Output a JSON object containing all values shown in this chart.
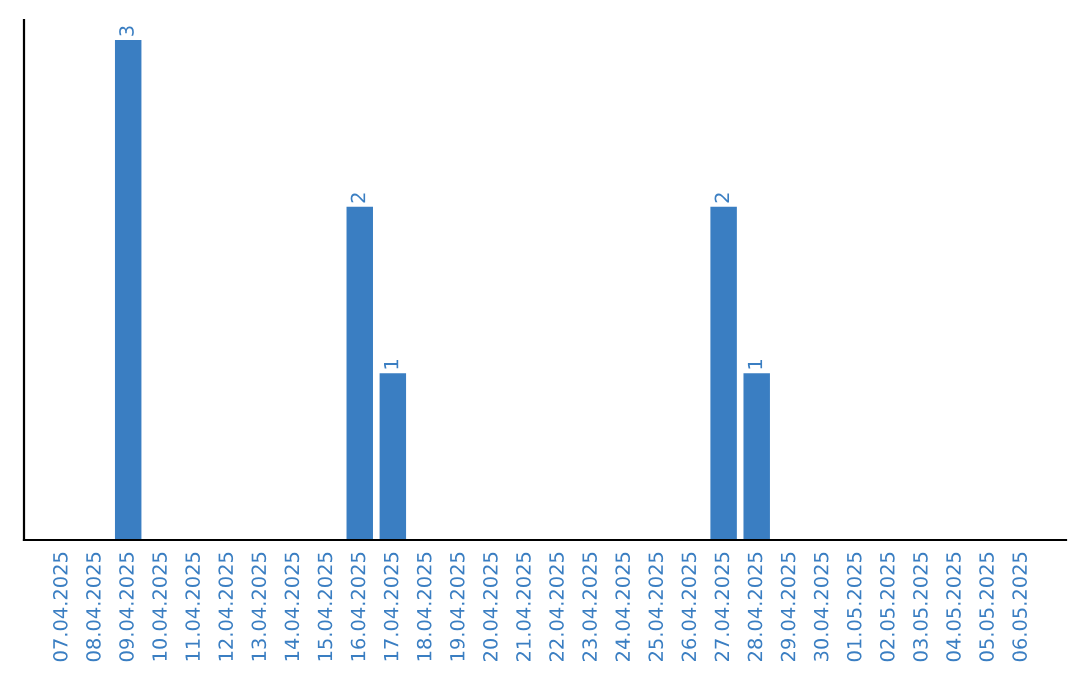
{
  "chart_data": {
    "type": "bar",
    "categories": [
      "07.04.2025",
      "08.04.2025",
      "09.04.2025",
      "10.04.2025",
      "11.04.2025",
      "12.04.2025",
      "13.04.2025",
      "14.04.2025",
      "15.04.2025",
      "16.04.2025",
      "17.04.2025",
      "18.04.2025",
      "19.04.2025",
      "20.04.2025",
      "21.04.2025",
      "22.04.2025",
      "23.04.2025",
      "24.04.2025",
      "25.04.2025",
      "26.04.2025",
      "27.04.2025",
      "28.04.2025",
      "29.04.2025",
      "30.04.2025",
      "01.05.2025",
      "02.05.2025",
      "03.05.2025",
      "04.05.2025",
      "05.05.2025",
      "06.05.2025"
    ],
    "values": [
      0,
      0,
      3,
      0,
      0,
      0,
      0,
      0,
      0,
      2,
      1,
      0,
      0,
      0,
      0,
      0,
      0,
      0,
      0,
      0,
      2,
      1,
      0,
      0,
      0,
      0,
      0,
      0,
      0,
      0
    ],
    "value_labels": [
      null,
      null,
      "3",
      null,
      null,
      null,
      null,
      null,
      null,
      "2",
      "1",
      null,
      null,
      null,
      null,
      null,
      null,
      null,
      null,
      null,
      "2",
      "1",
      null,
      null,
      null,
      null,
      null,
      null,
      null,
      null
    ],
    "color": "#3a7ec2",
    "tick_labels": "x",
    "grid": false,
    "legend": false
  }
}
